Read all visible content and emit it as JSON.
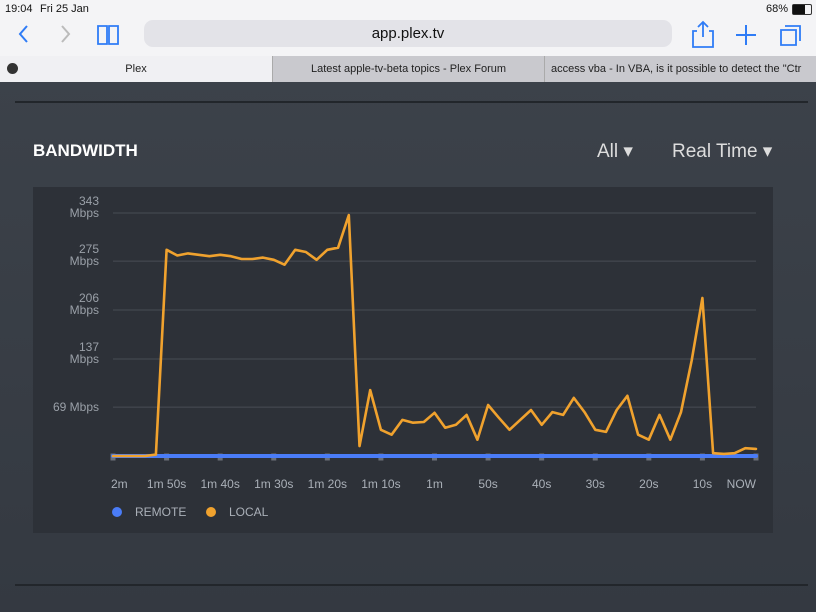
{
  "status_bar": {
    "time": "19:04",
    "date": "Fri 25 Jan",
    "battery": "68%"
  },
  "browser": {
    "url": "app.plex.tv"
  },
  "tabs": [
    "Plex",
    "Latest apple-tv-beta topics - Plex Forum",
    "access vba - In VBA, is it possible to detect the \"Ctr"
  ],
  "header": {
    "title": "BANDWIDTH",
    "filters": [
      "All",
      "Real Time"
    ]
  },
  "chart_data": {
    "type": "line",
    "categories": [
      "2m",
      null,
      null,
      null,
      null,
      "1m 50s",
      null,
      null,
      null,
      null,
      "1m 40s",
      null,
      null,
      null,
      null,
      "1m 30s",
      null,
      null,
      null,
      null,
      "1m 20s",
      null,
      null,
      null,
      null,
      "1m 10s",
      null,
      null,
      null,
      null,
      "1m",
      null,
      null,
      null,
      null,
      "50s",
      null,
      null,
      null,
      null,
      "40s",
      null,
      null,
      null,
      null,
      "30s",
      null,
      null,
      null,
      null,
      "20s",
      null,
      null,
      null,
      null,
      "10s",
      null,
      null,
      null,
      null,
      "NOW"
    ],
    "ylim": [
      0,
      343
    ],
    "yticks": [
      {
        "value": 69,
        "label": "69 Mbps"
      },
      {
        "value": 137,
        "label": "137 Mbps"
      },
      {
        "value": 206,
        "label": "206 Mbps"
      },
      {
        "value": 275,
        "label": "275 Mbps"
      },
      {
        "value": 343,
        "label": "343 Mbps"
      }
    ],
    "grid": true,
    "legend": "bottom-left",
    "series": [
      {
        "name": "REMOTE",
        "color": "#4a7cf7",
        "values": [
          0,
          0,
          0,
          0,
          0,
          0,
          0,
          0,
          0,
          0,
          0,
          0,
          0,
          0,
          0,
          0,
          0,
          0,
          0,
          0,
          0,
          0,
          0,
          0,
          0,
          0,
          0,
          0,
          0,
          0,
          0,
          0,
          0,
          0,
          0,
          0,
          0,
          0,
          0,
          0,
          0,
          0,
          0,
          0,
          0,
          0,
          0,
          0,
          0,
          0,
          0,
          0,
          0,
          0,
          0,
          0,
          0,
          0,
          0,
          0,
          0
        ]
      },
      {
        "name": "LOCAL",
        "color": "#f0a22e",
        "values": [
          0,
          0,
          0,
          0,
          2,
          291,
          283,
          286,
          284,
          282,
          284,
          282,
          278,
          278,
          280,
          277,
          270,
          291,
          288,
          277,
          291,
          294,
          340,
          14,
          93,
          37,
          30,
          51,
          47,
          48,
          61,
          40,
          44,
          58,
          23,
          72,
          54,
          37,
          51,
          65,
          44,
          62,
          58,
          82,
          62,
          37,
          34,
          65,
          85,
          30,
          23,
          58,
          23,
          62,
          135,
          223,
          4,
          3,
          4,
          11,
          10
        ]
      }
    ]
  }
}
